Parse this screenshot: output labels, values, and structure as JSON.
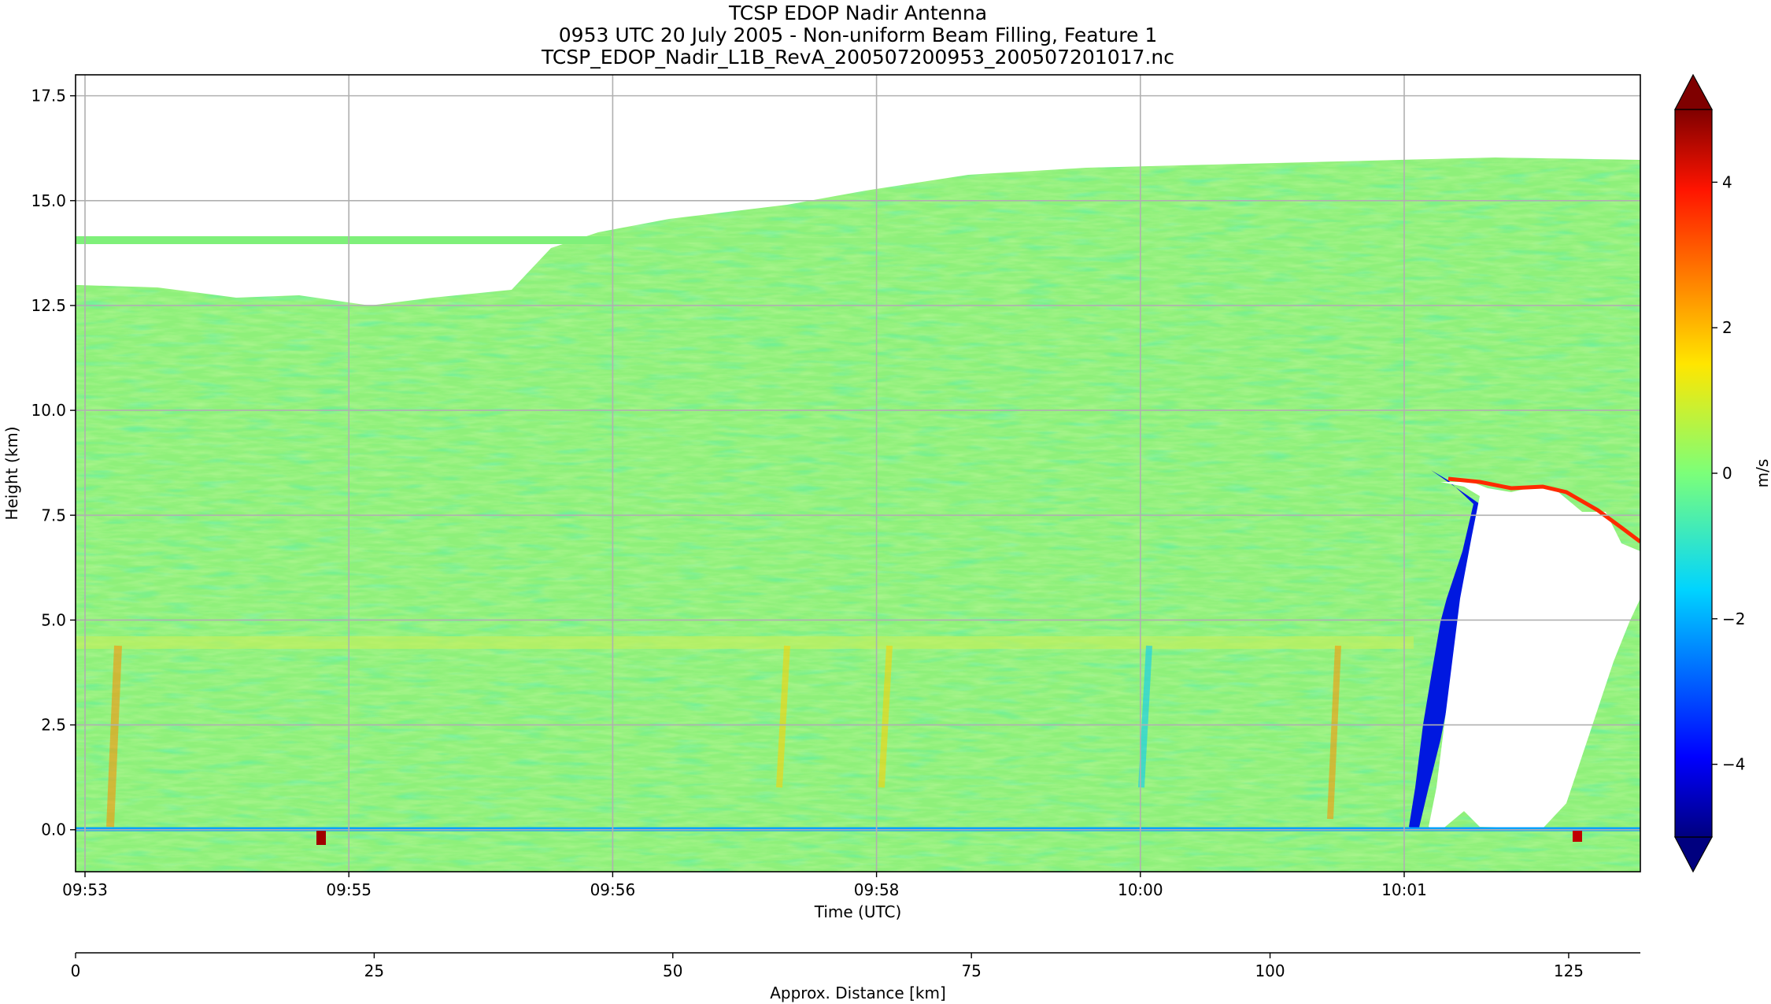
{
  "title": {
    "line1": "TCSP EDOP Nadir Antenna",
    "line2": "0953 UTC 20 July 2005 - Non-uniform Beam Filling, Feature 1",
    "line3": "TCSP_EDOP_Nadir_L1B_RevA_200507200953_200507201017.nc"
  },
  "chart_data": {
    "type": "heatmap",
    "field": "Doppler velocity",
    "ylabel": "Height (km)",
    "xlabel": "Time (UTC)",
    "x2label": "Approx. Distance [km]",
    "colorbar_label": "m/s",
    "colormap": "jet",
    "vlim": [
      -5,
      5
    ],
    "ylim": [
      -1,
      18
    ],
    "yticks": [
      "0.0",
      "2.5",
      "5.0",
      "7.5",
      "10.0",
      "12.5",
      "15.0",
      "17.5"
    ],
    "ytick_values": [
      0,
      2.5,
      5,
      7.5,
      10,
      12.5,
      15,
      17.5
    ],
    "xticks": [
      "09:53",
      "09:55",
      "09:56",
      "09:58",
      "10:00",
      "10:01"
    ],
    "x2ticks": [
      "0",
      "25",
      "50",
      "75",
      "100",
      "125"
    ],
    "x2lim": [
      0,
      131
    ],
    "cbar_ticks": [
      "4",
      "2",
      "0",
      "−2",
      "−4"
    ],
    "cbar_tick_values": [
      4,
      2,
      0,
      -2,
      -4
    ],
    "grid": true,
    "features": {
      "echo_top_left_km": 12.8,
      "echo_top_right_km": 15.9,
      "cirrus_layer_km": 14.0,
      "melting_layer_km": 4.6,
      "surface_km": 0.0
    }
  },
  "colors": {
    "background_field": "#8ef07a",
    "grid": "#b0b0b0",
    "no_echo": "#ffffff"
  }
}
